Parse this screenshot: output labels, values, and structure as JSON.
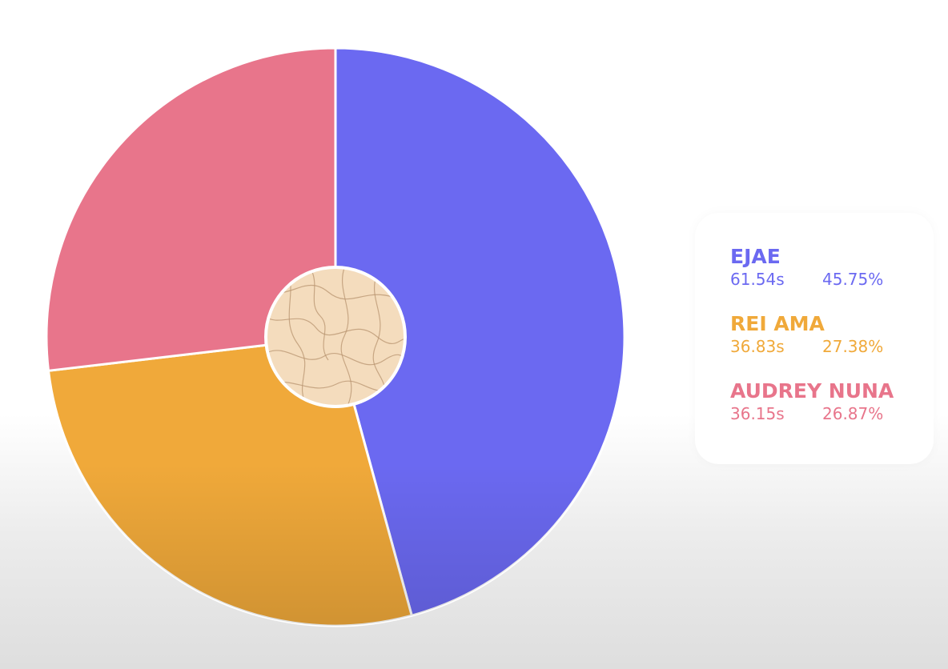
{
  "chart_data": {
    "type": "pie",
    "title": "",
    "slices": [
      {
        "name": "EJAE",
        "time": "61.54s",
        "percent_label": "45.75%",
        "value": 45.75,
        "color": "#6b69f1"
      },
      {
        "name": "REI AMA",
        "time": "36.83s",
        "percent_label": "27.38%",
        "value": 27.38,
        "color": "#f0a93a"
      },
      {
        "name": "AUDREY NUNA",
        "time": "36.15s",
        "percent_label": "26.87%",
        "value": 26.87,
        "color": "#e8758b"
      }
    ],
    "start_angle": "12 o'clock",
    "direction": "clockwise",
    "center_icon": "textured-circle-icon",
    "legend_position": "right"
  },
  "legend": {
    "items": [
      {
        "name": "EJAE",
        "time": "61.54s",
        "percent": "45.75%",
        "color": "#6b69f1"
      },
      {
        "name": "REI AMA",
        "time": "36.83s",
        "percent": "27.38%",
        "color": "#f0a93a"
      },
      {
        "name": "AUDREY NUNA",
        "time": "36.15s",
        "percent": "26.87%",
        "color": "#e8758b"
      }
    ]
  }
}
